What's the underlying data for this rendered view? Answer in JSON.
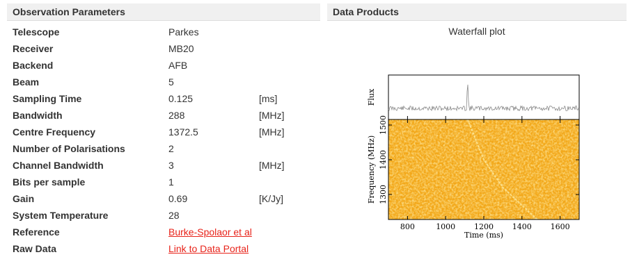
{
  "left_panel": {
    "title": "Observation Parameters",
    "rows": [
      {
        "name": "Telescope",
        "value": "Parkes",
        "unit": ""
      },
      {
        "name": "Receiver",
        "value": "MB20",
        "unit": ""
      },
      {
        "name": "Backend",
        "value": "AFB",
        "unit": ""
      },
      {
        "name": "Beam",
        "value": "5",
        "unit": ""
      },
      {
        "name": "Sampling Time",
        "value": "0.125",
        "unit": "[ms]"
      },
      {
        "name": "Bandwidth",
        "value": "288",
        "unit": "[MHz]"
      },
      {
        "name": "Centre Frequency",
        "value": "1372.5",
        "unit": "[MHz]"
      },
      {
        "name": "Number of Polarisations",
        "value": "2",
        "unit": ""
      },
      {
        "name": "Channel Bandwidth",
        "value": "3",
        "unit": "[MHz]"
      },
      {
        "name": "Bits per sample",
        "value": "1",
        "unit": ""
      },
      {
        "name": "Gain",
        "value": "0.69",
        "unit": "[K/Jy]"
      },
      {
        "name": "System Temperature",
        "value": "28",
        "unit": ""
      },
      {
        "name": "Reference",
        "value": "Burke-Spolaor et al",
        "unit": "",
        "link": true
      },
      {
        "name": "Raw Data",
        "value": "Link to Data Portal",
        "unit": "",
        "link": true
      }
    ]
  },
  "right_panel": {
    "title": "Data Products",
    "plot_title": "Waterfall plot"
  },
  "chart_data": {
    "type": "heatmap",
    "xlabel": "Time (ms)",
    "ylabel": "Frequency (MHz)",
    "top_ylabel": "Flux",
    "xlim": [
      700,
      1700
    ],
    "ylim": [
      1228,
      1516
    ],
    "x_ticks": [
      800,
      1000,
      1200,
      1400,
      1600
    ],
    "y_ticks": [
      1300,
      1400,
      1500
    ],
    "pulse_peak_time": 1115,
    "dispersion_track": [
      {
        "time": 1115,
        "freq": 1516
      },
      {
        "time": 1200,
        "freq": 1400
      },
      {
        "time": 1300,
        "freq": 1320
      },
      {
        "time": 1480,
        "freq": 1228
      }
    ],
    "colors": {
      "background": "#f2a516",
      "dark": "#d68a0c",
      "light": "#fbcd52",
      "pulse": "#fde79a",
      "flux_line": "#888888"
    }
  }
}
